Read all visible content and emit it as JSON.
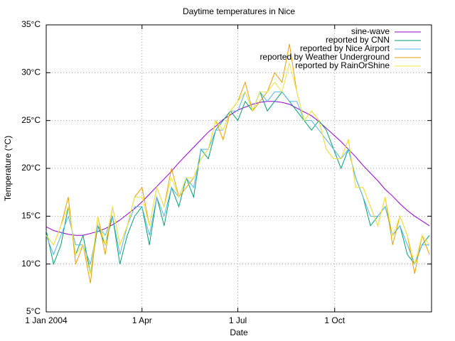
{
  "chart_data": {
    "type": "line",
    "title": "Daytime temperatures in Nice",
    "xlabel": "Date",
    "ylabel": "Temperature (°C)",
    "x": [
      "2004-01-01",
      "2004-01-08",
      "2004-01-15",
      "2004-01-22",
      "2004-01-29",
      "2004-02-05",
      "2004-02-12",
      "2004-02-19",
      "2004-02-26",
      "2004-03-04",
      "2004-03-11",
      "2004-03-18",
      "2004-03-25",
      "2004-04-01",
      "2004-04-08",
      "2004-04-15",
      "2004-04-22",
      "2004-04-29",
      "2004-05-06",
      "2004-05-13",
      "2004-05-20",
      "2004-05-27",
      "2004-06-03",
      "2004-06-10",
      "2004-06-17",
      "2004-06-24",
      "2004-07-01",
      "2004-07-08",
      "2004-07-15",
      "2004-07-22",
      "2004-07-29",
      "2004-08-05",
      "2004-08-12",
      "2004-08-19",
      "2004-08-26",
      "2004-09-02",
      "2004-09-09",
      "2004-09-16",
      "2004-09-23",
      "2004-09-30",
      "2004-10-07",
      "2004-10-14",
      "2004-10-21",
      "2004-10-28",
      "2004-11-04",
      "2004-11-11",
      "2004-11-18",
      "2004-11-25",
      "2004-12-02",
      "2004-12-09",
      "2004-12-16",
      "2004-12-23",
      "2004-12-30"
    ],
    "xlim": [
      "2004-01-01",
      "2005-01-01"
    ],
    "xticks": [
      {
        "value": "2004-01-01",
        "label": "1 Jan 2004"
      },
      {
        "value": "2004-04-01",
        "label": "1 Apr"
      },
      {
        "value": "2004-07-01",
        "label": "1 Jul"
      },
      {
        "value": "2004-10-01",
        "label": "1 Oct"
      }
    ],
    "ylim": [
      5,
      35
    ],
    "yticks": [
      {
        "value": 5,
        "label": "5°C"
      },
      {
        "value": 10,
        "label": "10°C"
      },
      {
        "value": 15,
        "label": "15°C"
      },
      {
        "value": 20,
        "label": "20°C"
      },
      {
        "value": 25,
        "label": "25°C"
      },
      {
        "value": 30,
        "label": "30°C"
      },
      {
        "value": 35,
        "label": "35°C"
      }
    ],
    "grid": true,
    "legend": "top-right",
    "series": [
      {
        "name": "sine-wave",
        "color": "#9400d3",
        "values": [
          13.9,
          13.5,
          13.3,
          13.1,
          13.0,
          13.0,
          13.2,
          13.4,
          13.7,
          14.1,
          14.6,
          15.2,
          15.8,
          16.5,
          17.3,
          18.1,
          18.9,
          19.7,
          20.6,
          21.4,
          22.2,
          23.0,
          23.8,
          24.4,
          25.1,
          25.6,
          26.1,
          26.4,
          26.7,
          26.9,
          27.0,
          27.0,
          26.9,
          26.7,
          26.3,
          25.9,
          25.5,
          24.9,
          24.2,
          23.5,
          22.8,
          22.0,
          21.2,
          20.3,
          19.5,
          18.7,
          17.8,
          17.1,
          16.3,
          15.6,
          15.0,
          14.5,
          14.0
        ]
      },
      {
        "name": "reported by CNN",
        "color": "#009e73",
        "values": [
          13.5,
          10,
          12,
          16,
          11,
          13,
          9,
          14,
          12,
          15,
          10,
          13,
          15,
          16,
          12,
          17,
          14,
          18,
          16,
          19,
          17,
          22,
          21,
          24,
          25,
          26,
          25,
          27,
          26,
          28,
          26,
          27,
          28,
          27,
          26,
          25,
          24,
          25,
          24,
          22,
          20,
          22,
          19,
          17,
          14,
          15,
          16,
          13,
          14,
          11,
          10,
          12,
          13
        ]
      },
      {
        "name": "reported by Nice Airport",
        "color": "#56b4e9",
        "values": [
          13,
          11,
          13,
          15,
          12,
          12,
          10,
          14,
          13,
          15,
          11,
          14,
          16,
          16,
          13,
          17,
          15,
          18,
          17,
          19,
          18,
          22,
          22,
          24,
          24,
          26,
          26,
          28,
          26,
          28,
          27,
          28,
          28,
          27,
          27,
          25,
          25,
          24,
          23,
          22,
          21,
          22,
          19,
          17,
          15,
          15,
          16,
          13,
          14,
          12,
          10,
          12,
          12
        ]
      },
      {
        "name": "reported by Weather Underground",
        "color": "#e69f00",
        "values": [
          13,
          12,
          14,
          17,
          10,
          12,
          8,
          15,
          11,
          16,
          12,
          14,
          17,
          18,
          14,
          18,
          16,
          20,
          17,
          18,
          19,
          21,
          22,
          25,
          23,
          26,
          27,
          29,
          26,
          27,
          28,
          30,
          29,
          33,
          28,
          25,
          26,
          25,
          22,
          21,
          21,
          23,
          18,
          18,
          16,
          14,
          17,
          12,
          15,
          13,
          9,
          13,
          11
        ]
      },
      {
        "name": "reported by RainOrShine",
        "color": "#f0e442",
        "values": [
          13,
          12,
          14,
          16,
          11,
          12,
          9,
          15,
          12,
          16,
          12,
          14,
          17,
          17,
          14,
          18,
          16,
          19,
          17,
          19,
          19,
          21,
          22,
          25,
          24,
          26,
          27,
          28,
          26,
          28,
          28,
          29,
          28,
          31,
          28,
          25,
          26,
          25,
          22,
          21,
          21,
          23,
          18,
          18,
          16,
          14,
          17,
          13,
          15,
          13,
          10,
          13,
          12
        ]
      }
    ]
  }
}
